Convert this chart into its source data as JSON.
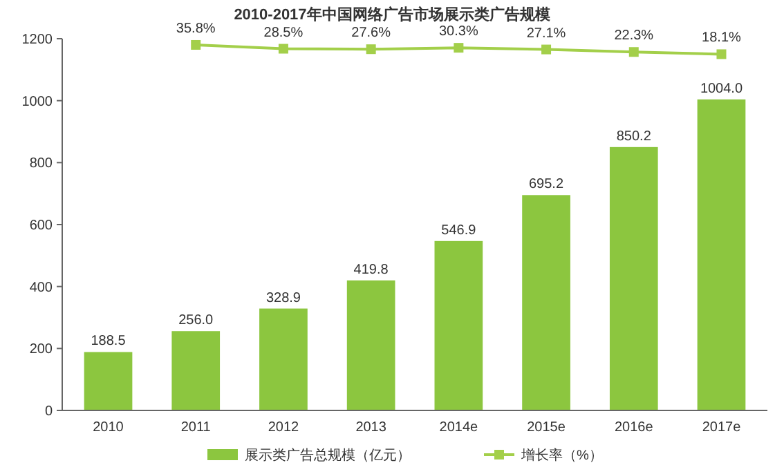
{
  "chart_data": {
    "type": "bar",
    "title": "2010-2017年中国网络广告市场展示类广告规模",
    "categories": [
      "2010",
      "2011",
      "2012",
      "2013",
      "2014e",
      "2015e",
      "2016e",
      "2017e"
    ],
    "series": [
      {
        "name": "展示类广告总规模（亿元）",
        "color": "#8cc63f",
        "values": [
          188.5,
          256.0,
          328.9,
          419.8,
          546.9,
          695.2,
          850.2,
          1004.0
        ],
        "value_labels": [
          "188.5",
          "256.0",
          "328.9",
          "419.8",
          "546.9",
          "695.2",
          "850.2",
          "1004.0"
        ]
      },
      {
        "name": "增长率（%）",
        "type": "line",
        "axis": "y2",
        "color": "#a3cf4a",
        "marker": "square",
        "values": [
          null,
          35.8,
          28.5,
          27.6,
          30.3,
          27.1,
          22.3,
          18.1
        ],
        "value_labels": [
          null,
          "35.8%",
          "28.5%",
          "27.6%",
          "30.3%",
          "27.1%",
          "22.3%",
          "18.1%"
        ]
      }
    ],
    "ylim": [
      0,
      1200
    ],
    "yticks": [
      0,
      200,
      400,
      600,
      800,
      1000,
      1200
    ],
    "y2lim": [
      -660,
      47.6
    ],
    "grid": false,
    "legend": "bottom"
  }
}
